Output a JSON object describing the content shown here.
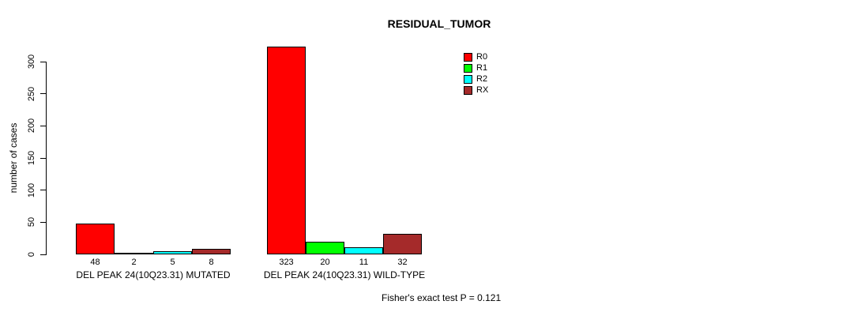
{
  "title": "RESIDUAL_TUMOR",
  "ylabel": "number of cases",
  "annotation": "Fisher's exact test P = 0.121",
  "legend": {
    "items": [
      {
        "label": "R0",
        "color": "#ff0000"
      },
      {
        "label": "R1",
        "color": "#00ff00"
      },
      {
        "label": "R2",
        "color": "#00ffff"
      },
      {
        "label": "RX",
        "color": "#a52a2a"
      }
    ]
  },
  "chart_data": {
    "type": "bar",
    "title": "RESIDUAL_TUMOR",
    "xlabel": "",
    "ylabel": "number of cases",
    "yticks": [
      0,
      50,
      100,
      150,
      200,
      250,
      300
    ],
    "ylim": [
      0,
      323
    ],
    "grid": false,
    "legend_position": "top-right",
    "series_names": [
      "R0",
      "R1",
      "R2",
      "RX"
    ],
    "series_colors": [
      "#ff0000",
      "#00ff00",
      "#00ffff",
      "#a52a2a"
    ],
    "groups": [
      {
        "label": "DEL PEAK 24(10Q23.31) MUTATED",
        "values": [
          48,
          2,
          5,
          8
        ]
      },
      {
        "label": "DEL PEAK 24(10Q23.31) WILD-TYPE",
        "values": [
          323,
          20,
          11,
          32
        ]
      }
    ],
    "annotation": "Fisher's exact test P = 0.121"
  }
}
